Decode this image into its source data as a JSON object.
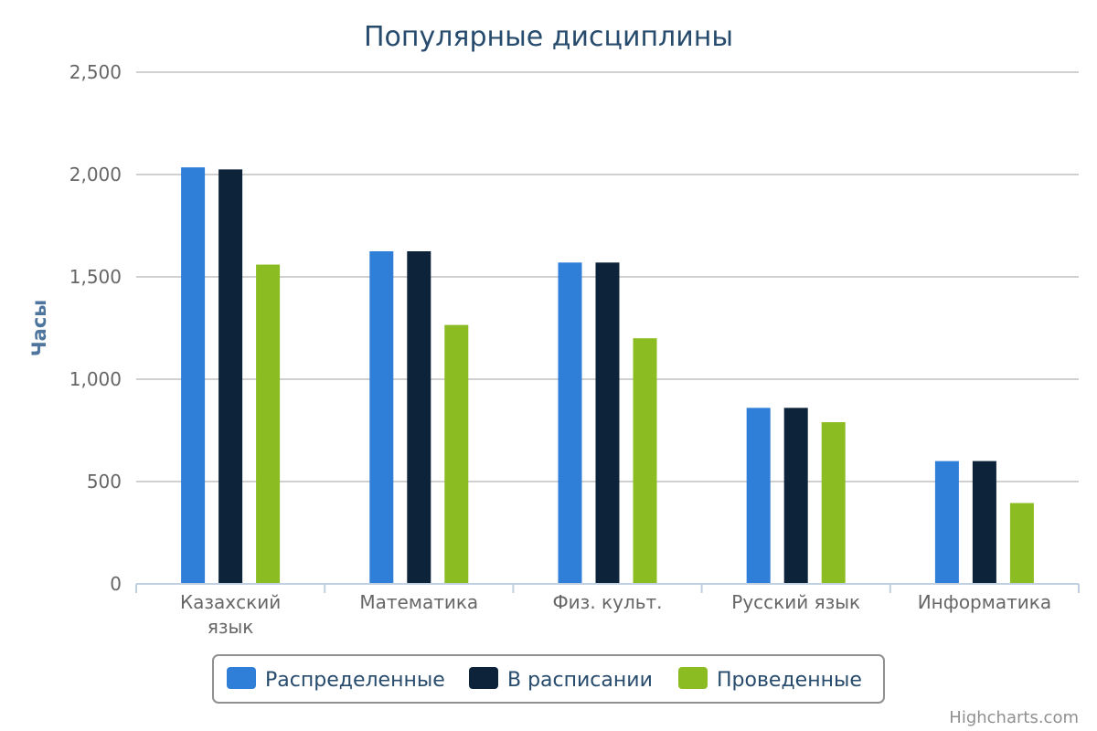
{
  "credits": "Highcharts.com",
  "chart_data": {
    "type": "bar",
    "title": "Популярные дисциплины",
    "xlabel": "",
    "ylabel": "Часы",
    "ylim": [
      0,
      2500
    ],
    "yticks": [
      0,
      500,
      1000,
      1500,
      2000,
      2500
    ],
    "ytick_labels": [
      "0",
      "500",
      "1,000",
      "1,500",
      "2,000",
      "2,500"
    ],
    "grid": true,
    "legend_position": "bottom-center",
    "categories": [
      [
        "Казахский",
        "язык"
      ],
      [
        "Математика"
      ],
      [
        "Физ. культ."
      ],
      [
        "Русский язык"
      ],
      [
        "Информатика"
      ]
    ],
    "series": [
      {
        "name": "Распределенные",
        "color": "#2f7ed8",
        "values": [
          2035,
          1625,
          1570,
          860,
          600
        ]
      },
      {
        "name": "В расписании",
        "color": "#0d233a",
        "values": [
          2025,
          1625,
          1570,
          860,
          600
        ]
      },
      {
        "name": "Проведенные",
        "color": "#8bbc21",
        "values": [
          1560,
          1265,
          1200,
          790,
          395
        ]
      }
    ]
  }
}
